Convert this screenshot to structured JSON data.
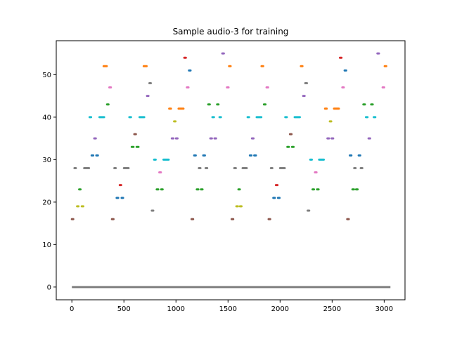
{
  "chart_data": {
    "type": "scatter",
    "title": "Sample audio-3 for training",
    "xlabel": "",
    "ylabel": "",
    "xlim": [
      -150,
      3200
    ],
    "ylim": [
      -3,
      58
    ],
    "xticks": [
      0,
      500,
      1000,
      1500,
      2000,
      2500,
      3000
    ],
    "yticks": [
      0,
      10,
      20,
      30,
      40,
      50
    ],
    "grid": false,
    "legend": "none",
    "baseline": {
      "y": 0,
      "x_start": 0,
      "x_end": 3060,
      "color": "#7f7f7f"
    },
    "palette": {
      "blue": "#1f77b4",
      "orange": "#ff7f0e",
      "green": "#2ca02c",
      "red": "#d62728",
      "purple": "#9467bd",
      "brown": "#8c564b",
      "pink": "#e377c2",
      "gray": "#7f7f7f",
      "olive": "#bcbd22",
      "cyan": "#17becf"
    },
    "segments": [
      {
        "c": "brown",
        "x1": 0,
        "x2": 10,
        "y": 16
      },
      {
        "c": "olive",
        "x1": 50,
        "x2": 60,
        "y": 19
      },
      {
        "c": "olive",
        "x1": 95,
        "x2": 110,
        "y": 19
      },
      {
        "c": "gray",
        "x1": 25,
        "x2": 35,
        "y": 28
      },
      {
        "c": "green",
        "x1": 70,
        "x2": 80,
        "y": 23
      },
      {
        "c": "gray",
        "x1": 118,
        "x2": 165,
        "y": 28
      },
      {
        "c": "cyan",
        "x1": 170,
        "x2": 185,
        "y": 40
      },
      {
        "c": "blue",
        "x1": 190,
        "x2": 205,
        "y": 31
      },
      {
        "c": "purple",
        "x1": 215,
        "x2": 230,
        "y": 35
      },
      {
        "c": "blue",
        "x1": 235,
        "x2": 250,
        "y": 31
      },
      {
        "c": "cyan",
        "x1": 265,
        "x2": 310,
        "y": 40
      },
      {
        "c": "orange",
        "x1": 305,
        "x2": 335,
        "y": 52
      },
      {
        "c": "green",
        "x1": 338,
        "x2": 352,
        "y": 43
      },
      {
        "c": "pink",
        "x1": 360,
        "x2": 375,
        "y": 47
      },
      {
        "c": "brown",
        "x1": 385,
        "x2": 400,
        "y": 16
      },
      {
        "c": "gray",
        "x1": 408,
        "x2": 420,
        "y": 28
      },
      {
        "c": "blue",
        "x1": 430,
        "x2": 445,
        "y": 21
      },
      {
        "c": "red",
        "x1": 460,
        "x2": 472,
        "y": 24
      },
      {
        "c": "blue",
        "x1": 478,
        "x2": 492,
        "y": 21
      },
      {
        "c": "gray",
        "x1": 500,
        "x2": 545,
        "y": 28
      },
      {
        "c": "cyan",
        "x1": 552,
        "x2": 568,
        "y": 40
      },
      {
        "c": "green",
        "x1": 575,
        "x2": 592,
        "y": 33
      },
      {
        "c": "brown",
        "x1": 600,
        "x2": 615,
        "y": 36
      },
      {
        "c": "green",
        "x1": 622,
        "x2": 640,
        "y": 33
      },
      {
        "c": "cyan",
        "x1": 650,
        "x2": 695,
        "y": 40
      },
      {
        "c": "orange",
        "x1": 690,
        "x2": 718,
        "y": 52
      },
      {
        "c": "purple",
        "x1": 722,
        "x2": 735,
        "y": 45
      },
      {
        "c": "gray",
        "x1": 745,
        "x2": 758,
        "y": 48
      },
      {
        "c": "gray",
        "x1": 768,
        "x2": 782,
        "y": 18
      },
      {
        "c": "cyan",
        "x1": 790,
        "x2": 805,
        "y": 30
      },
      {
        "c": "green",
        "x1": 815,
        "x2": 830,
        "y": 23
      },
      {
        "c": "pink",
        "x1": 840,
        "x2": 855,
        "y": 27
      },
      {
        "c": "green",
        "x1": 858,
        "x2": 872,
        "y": 23
      },
      {
        "c": "cyan",
        "x1": 880,
        "x2": 930,
        "y": 30
      },
      {
        "c": "orange",
        "x1": 935,
        "x2": 952,
        "y": 42
      },
      {
        "c": "purple",
        "x1": 960,
        "x2": 975,
        "y": 35
      },
      {
        "c": "olive",
        "x1": 982,
        "x2": 995,
        "y": 39
      },
      {
        "c": "purple",
        "x1": 1000,
        "x2": 1015,
        "y": 35
      },
      {
        "c": "orange",
        "x1": 1025,
        "x2": 1072,
        "y": 42
      },
      {
        "c": "red",
        "x1": 1080,
        "x2": 1095,
        "y": 54
      },
      {
        "c": "pink",
        "x1": 1105,
        "x2": 1120,
        "y": 47
      },
      {
        "c": "blue",
        "x1": 1125,
        "x2": 1140,
        "y": 51
      },
      {
        "c": "brown",
        "x1": 1150,
        "x2": 1165,
        "y": 16
      },
      {
        "c": "blue",
        "x1": 1175,
        "x2": 1190,
        "y": 31
      },
      {
        "c": "green",
        "x1": 1200,
        "x2": 1215,
        "y": 23
      },
      {
        "c": "gray",
        "x1": 1220,
        "x2": 1235,
        "y": 28
      },
      {
        "c": "green",
        "x1": 1240,
        "x2": 1255,
        "y": 23
      },
      {
        "c": "blue",
        "x1": 1262,
        "x2": 1278,
        "y": 31
      },
      {
        "c": "gray",
        "x1": 1285,
        "x2": 1300,
        "y": 28
      },
      {
        "c": "green",
        "x1": 1310,
        "x2": 1325,
        "y": 43
      },
      {
        "c": "purple",
        "x1": 1330,
        "x2": 1345,
        "y": 35
      },
      {
        "c": "cyan",
        "x1": 1350,
        "x2": 1365,
        "y": 40
      },
      {
        "c": "purple",
        "x1": 1370,
        "x2": 1385,
        "y": 35
      },
      {
        "c": "green",
        "x1": 1395,
        "x2": 1408,
        "y": 43
      },
      {
        "c": "cyan",
        "x1": 1418,
        "x2": 1432,
        "y": 40
      },
      {
        "c": "purple",
        "x1": 1445,
        "x2": 1460,
        "y": 55
      },
      {
        "c": "pink",
        "x1": 1490,
        "x2": 1505,
        "y": 47
      },
      {
        "c": "orange",
        "x1": 1510,
        "x2": 1525,
        "y": 52
      },
      {
        "c": "brown",
        "x1": 1535,
        "x2": 1550,
        "y": 16
      },
      {
        "c": "gray",
        "x1": 1560,
        "x2": 1575,
        "y": 28
      },
      {
        "c": "olive",
        "x1": 1580,
        "x2": 1595,
        "y": 19
      },
      {
        "c": "green",
        "x1": 1600,
        "x2": 1612,
        "y": 23
      },
      {
        "c": "olive",
        "x1": 1615,
        "x2": 1630,
        "y": 19
      },
      {
        "c": "gray",
        "x1": 1640,
        "x2": 1680,
        "y": 28
      },
      {
        "c": "cyan",
        "x1": 1688,
        "x2": 1702,
        "y": 40
      },
      {
        "c": "blue",
        "x1": 1710,
        "x2": 1725,
        "y": 31
      },
      {
        "c": "purple",
        "x1": 1730,
        "x2": 1745,
        "y": 35
      },
      {
        "c": "blue",
        "x1": 1752,
        "x2": 1768,
        "y": 31
      },
      {
        "c": "cyan",
        "x1": 1775,
        "x2": 1820,
        "y": 40
      },
      {
        "c": "orange",
        "x1": 1822,
        "x2": 1838,
        "y": 52
      },
      {
        "c": "green",
        "x1": 1845,
        "x2": 1860,
        "y": 43
      },
      {
        "c": "pink",
        "x1": 1870,
        "x2": 1885,
        "y": 47
      },
      {
        "c": "brown",
        "x1": 1890,
        "x2": 1905,
        "y": 16
      },
      {
        "c": "gray",
        "x1": 1912,
        "x2": 1925,
        "y": 28
      },
      {
        "c": "blue",
        "x1": 1935,
        "x2": 1950,
        "y": 21
      },
      {
        "c": "red",
        "x1": 1960,
        "x2": 1975,
        "y": 24
      },
      {
        "c": "blue",
        "x1": 1980,
        "x2": 1995,
        "y": 21
      },
      {
        "c": "gray",
        "x1": 2000,
        "x2": 2045,
        "y": 28
      },
      {
        "c": "cyan",
        "x1": 2050,
        "x2": 2065,
        "y": 40
      },
      {
        "c": "green",
        "x1": 2070,
        "x2": 2085,
        "y": 33
      },
      {
        "c": "brown",
        "x1": 2095,
        "x2": 2110,
        "y": 36
      },
      {
        "c": "green",
        "x1": 2115,
        "x2": 2130,
        "y": 33
      },
      {
        "c": "cyan",
        "x1": 2140,
        "x2": 2190,
        "y": 40
      },
      {
        "c": "orange",
        "x1": 2200,
        "x2": 2215,
        "y": 52
      },
      {
        "c": "purple",
        "x1": 2222,
        "x2": 2235,
        "y": 45
      },
      {
        "c": "gray",
        "x1": 2242,
        "x2": 2258,
        "y": 48
      },
      {
        "c": "gray",
        "x1": 2265,
        "x2": 2280,
        "y": 18
      },
      {
        "c": "cyan",
        "x1": 2290,
        "x2": 2305,
        "y": 30
      },
      {
        "c": "green",
        "x1": 2312,
        "x2": 2325,
        "y": 23
      },
      {
        "c": "pink",
        "x1": 2335,
        "x2": 2350,
        "y": 27
      },
      {
        "c": "green",
        "x1": 2355,
        "x2": 2370,
        "y": 23
      },
      {
        "c": "cyan",
        "x1": 2375,
        "x2": 2420,
        "y": 30
      },
      {
        "c": "orange",
        "x1": 2432,
        "x2": 2448,
        "y": 42
      },
      {
        "c": "purple",
        "x1": 2455,
        "x2": 2470,
        "y": 35
      },
      {
        "c": "olive",
        "x1": 2478,
        "x2": 2490,
        "y": 39
      },
      {
        "c": "purple",
        "x1": 2495,
        "x2": 2510,
        "y": 35
      },
      {
        "c": "orange",
        "x1": 2518,
        "x2": 2565,
        "y": 42
      },
      {
        "c": "red",
        "x1": 2575,
        "x2": 2590,
        "y": 54
      },
      {
        "c": "pink",
        "x1": 2598,
        "x2": 2612,
        "y": 47
      },
      {
        "c": "blue",
        "x1": 2620,
        "x2": 2635,
        "y": 51
      },
      {
        "c": "brown",
        "x1": 2645,
        "x2": 2660,
        "y": 16
      },
      {
        "c": "blue",
        "x1": 2670,
        "x2": 2685,
        "y": 31
      },
      {
        "c": "green",
        "x1": 2695,
        "x2": 2710,
        "y": 23
      },
      {
        "c": "gray",
        "x1": 2712,
        "x2": 2725,
        "y": 28
      },
      {
        "c": "green",
        "x1": 2730,
        "x2": 2745,
        "y": 23
      },
      {
        "c": "blue",
        "x1": 2755,
        "x2": 2770,
        "y": 31
      },
      {
        "c": "gray",
        "x1": 2775,
        "x2": 2790,
        "y": 28
      },
      {
        "c": "green",
        "x1": 2800,
        "x2": 2815,
        "y": 43
      },
      {
        "c": "cyan",
        "x1": 2825,
        "x2": 2840,
        "y": 40
      },
      {
        "c": "purple",
        "x1": 2850,
        "x2": 2865,
        "y": 35
      },
      {
        "c": "green",
        "x1": 2875,
        "x2": 2890,
        "y": 43
      },
      {
        "c": "cyan",
        "x1": 2900,
        "x2": 2915,
        "y": 40
      },
      {
        "c": "purple",
        "x1": 2935,
        "x2": 2950,
        "y": 55
      },
      {
        "c": "pink",
        "x1": 2985,
        "x2": 3000,
        "y": 47
      },
      {
        "c": "orange",
        "x1": 3005,
        "x2": 3020,
        "y": 52
      }
    ]
  }
}
